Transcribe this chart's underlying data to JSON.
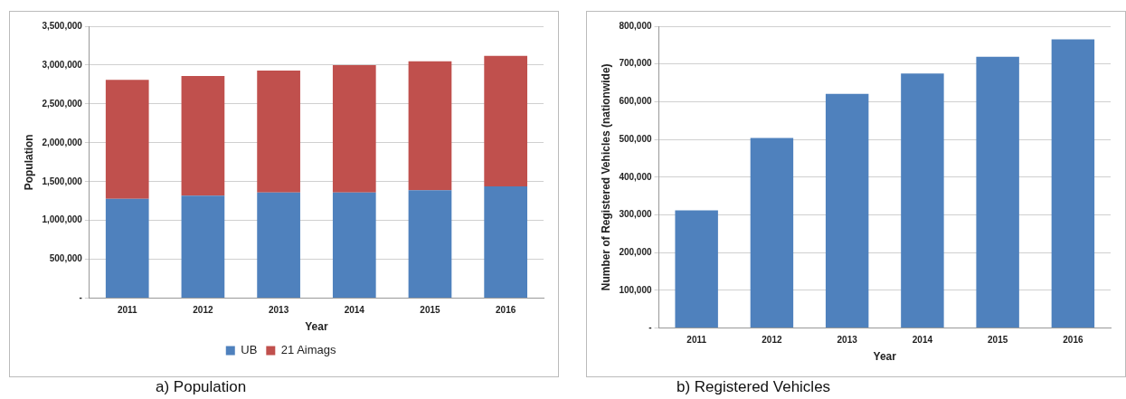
{
  "chart_data": [
    {
      "type": "bar",
      "title": "a) Population",
      "xlabel": "Year",
      "ylabel": "Population",
      "categories": [
        "2011",
        "2012",
        "2013",
        "2014",
        "2015",
        "2016"
      ],
      "stacked": true,
      "series": [
        {
          "name": "UB",
          "color": "#4f81bd",
          "values": [
            1280000,
            1320000,
            1360000,
            1360000,
            1390000,
            1440000
          ]
        },
        {
          "name": "21 Aimags",
          "color": "#c0504d",
          "values": [
            1530000,
            1540000,
            1570000,
            1640000,
            1660000,
            1680000
          ]
        }
      ],
      "ylim": [
        0,
        3500000
      ],
      "yticks": [
        {
          "value": 0,
          "label": "-"
        },
        {
          "value": 500000,
          "label": "500,000"
        },
        {
          "value": 1000000,
          "label": "1,000,000"
        },
        {
          "value": 1500000,
          "label": "1,500,000"
        },
        {
          "value": 2000000,
          "label": "2,000,000"
        },
        {
          "value": 2500000,
          "label": "2,500,000"
        },
        {
          "value": 3000000,
          "label": "3,000,000"
        },
        {
          "value": 3500000,
          "label": "3,500,000"
        }
      ],
      "grid": "y",
      "legend": "bottom"
    },
    {
      "type": "bar",
      "title": "b) Registered Vehicles",
      "xlabel": "Year",
      "ylabel": "Number of Registered Vehicles (nationwide)",
      "categories": [
        "2011",
        "2012",
        "2013",
        "2014",
        "2015",
        "2016"
      ],
      "series": [
        {
          "color": "#4f81bd",
          "values": [
            312000,
            504000,
            621000,
            675000,
            719000,
            765000
          ]
        }
      ],
      "ylim": [
        0,
        800000
      ],
      "yticks": [
        {
          "value": 0,
          "label": "-"
        },
        {
          "value": 100000,
          "label": "100,000"
        },
        {
          "value": 200000,
          "label": "200,000"
        },
        {
          "value": 300000,
          "label": "300,000"
        },
        {
          "value": 400000,
          "label": "400,000"
        },
        {
          "value": 500000,
          "label": "500,000"
        },
        {
          "value": 600000,
          "label": "600,000"
        },
        {
          "value": 700000,
          "label": "700,000"
        },
        {
          "value": 800000,
          "label": "800,000"
        }
      ],
      "grid": "y",
      "legend": false
    }
  ]
}
